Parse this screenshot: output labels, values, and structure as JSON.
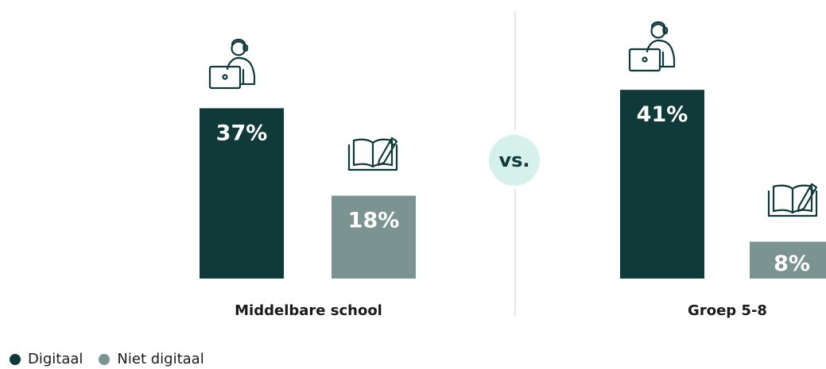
{
  "chart_data": {
    "type": "bar",
    "categories": [
      "Middelbare school",
      "Groep 5-8"
    ],
    "series": [
      {
        "name": "Digitaal",
        "values": [
          37,
          41
        ],
        "color": "#10393a",
        "labels": [
          "37%",
          "41%"
        ],
        "icon": "person-laptop-icon"
      },
      {
        "name": "Niet digitaal",
        "values": [
          18,
          8
        ],
        "color": "#7b9491",
        "labels": [
          "18%",
          "8%"
        ],
        "icon": "open-book-pencil-icon"
      }
    ],
    "ylim": [
      0,
      42
    ],
    "divider_text": "vs.",
    "legend_position": "bottom-left",
    "grid": false
  },
  "colors": {
    "vs_badge": "#d6f0ec",
    "divider": "#e6e6e6",
    "text": "#1a1a1a"
  }
}
